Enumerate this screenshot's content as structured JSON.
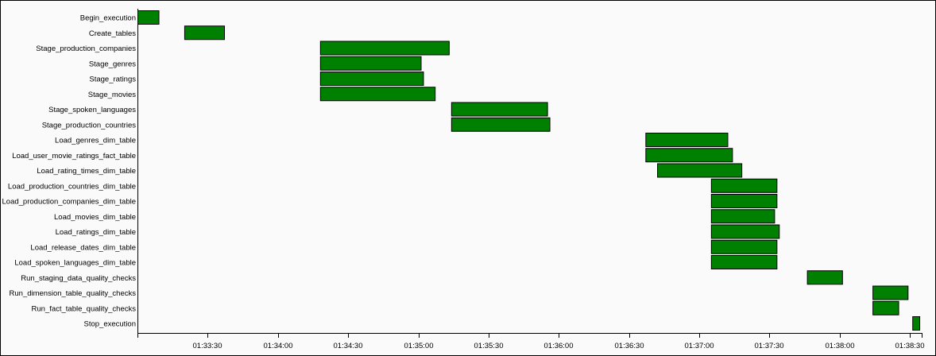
{
  "chart_data": {
    "type": "gantt",
    "title": "",
    "xlabel": "",
    "ylabel": "",
    "x_axis": {
      "range": [
        "01:33:00",
        "01:38:35"
      ],
      "tick_labels": [
        "01:33:30",
        "01:34:00",
        "01:34:30",
        "01:35:00",
        "01:35:30",
        "01:36:00",
        "01:36:30",
        "01:37:00",
        "01:37:30",
        "01:38:00",
        "01:38:30"
      ]
    },
    "grid": false,
    "bar_color": "#008000",
    "tasks": [
      {
        "name": "Begin_execution",
        "start": "01:33:00",
        "end": "01:33:09"
      },
      {
        "name": "Create_tables",
        "start": "01:33:20",
        "end": "01:33:37"
      },
      {
        "name": "Stage_production_companies",
        "start": "01:34:18",
        "end": "01:35:13"
      },
      {
        "name": "Stage_genres",
        "start": "01:34:18",
        "end": "01:35:01"
      },
      {
        "name": "Stage_ratings",
        "start": "01:34:18",
        "end": "01:35:02"
      },
      {
        "name": "Stage_movies",
        "start": "01:34:18",
        "end": "01:35:07"
      },
      {
        "name": "Stage_spoken_languages",
        "start": "01:35:14",
        "end": "01:35:55"
      },
      {
        "name": "Stage_production_countries",
        "start": "01:35:14",
        "end": "01:35:56"
      },
      {
        "name": "Load_genres_dim_table",
        "start": "01:36:37",
        "end": "01:37:12"
      },
      {
        "name": "Load_user_movie_ratings_fact_table",
        "start": "01:36:37",
        "end": "01:37:14"
      },
      {
        "name": "Load_rating_times_dim_table",
        "start": "01:36:42",
        "end": "01:37:18"
      },
      {
        "name": "Load_production_countries_dim_table",
        "start": "01:37:05",
        "end": "01:37:33"
      },
      {
        "name": "Load_production_companies_dim_table",
        "start": "01:37:05",
        "end": "01:37:33"
      },
      {
        "name": "Load_movies_dim_table",
        "start": "01:37:05",
        "end": "01:37:32"
      },
      {
        "name": "Load_ratings_dim_table",
        "start": "01:37:05",
        "end": "01:37:34"
      },
      {
        "name": "Load_release_dates_dim_table",
        "start": "01:37:05",
        "end": "01:37:33"
      },
      {
        "name": "Load_spoken_languages_dim_table",
        "start": "01:37:05",
        "end": "01:37:33"
      },
      {
        "name": "Run_staging_data_quality_checks",
        "start": "01:37:46",
        "end": "01:38:01"
      },
      {
        "name": "Run_dimension_table_quality_checks",
        "start": "01:38:14",
        "end": "01:38:29"
      },
      {
        "name": "Run_fact_table_quality_checks",
        "start": "01:38:14",
        "end": "01:38:25"
      },
      {
        "name": "Stop_execution",
        "start": "01:38:31",
        "end": "01:38:34"
      }
    ]
  }
}
